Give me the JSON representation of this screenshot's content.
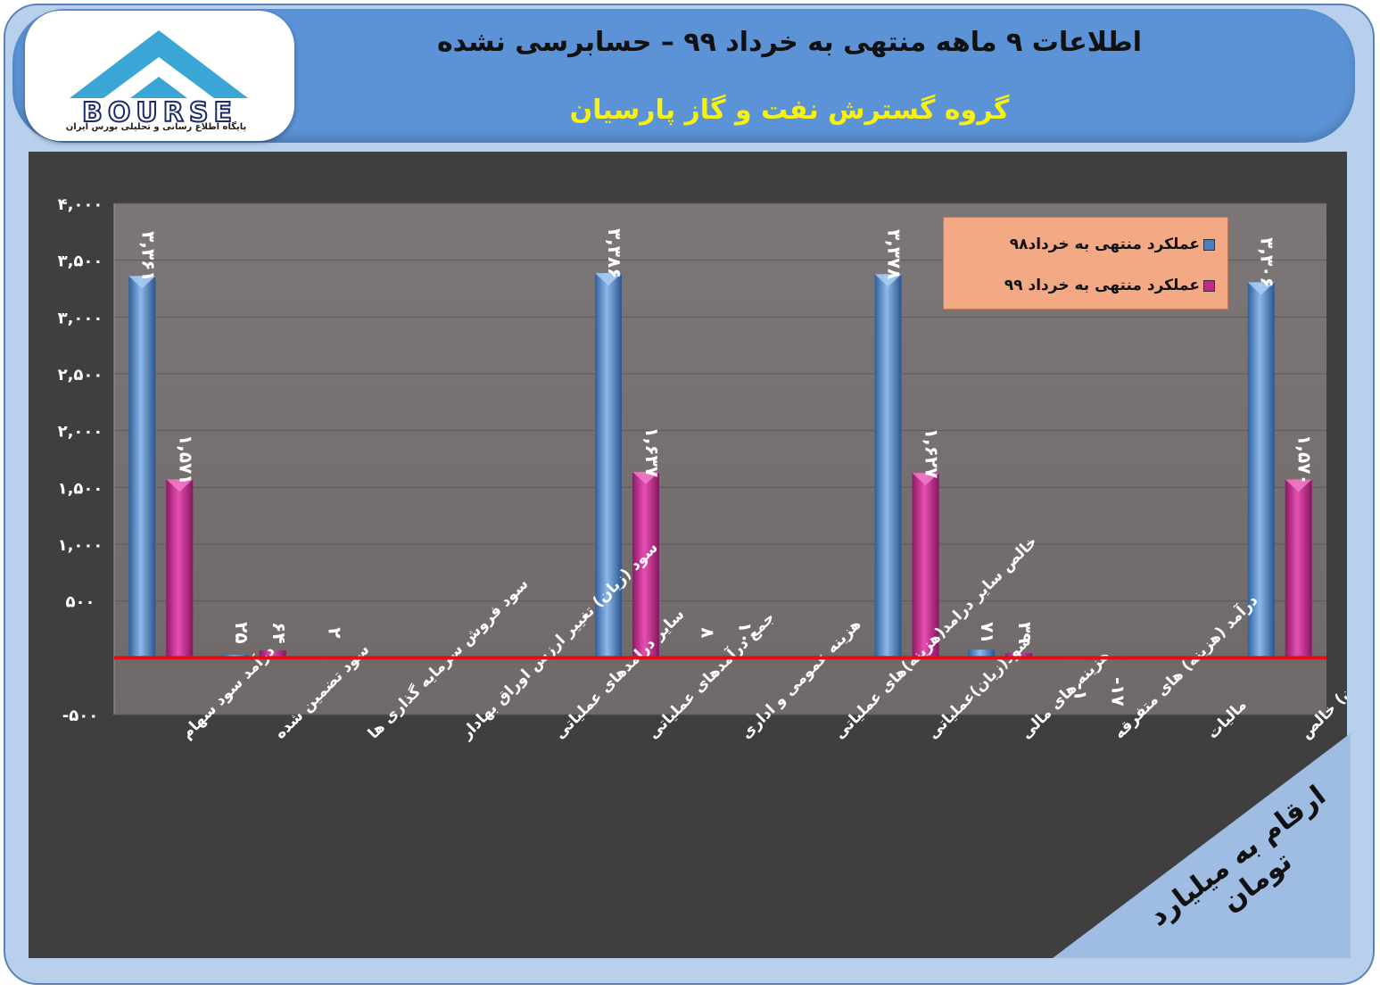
{
  "header": {
    "title": "اطلاعات ۹ ماهه منتهی به خرداد ۹۹ – حسابرسی نشده",
    "subtitle": "گروه گسترش نفت و گاز پارسیان"
  },
  "logo": {
    "text": "BOURSE",
    "tagline": "پایگاه اطلاع رسانی و تحلیلی بورس ایران"
  },
  "units_note": "ارقام به میلیارد تومان",
  "colors": {
    "series98": "#4a7fc1",
    "series99": "#c42a8e",
    "zero_line": "#e01010",
    "plot_bg": "#7a7474"
  },
  "chart_data": {
    "type": "bar",
    "title": "",
    "xlabel": "",
    "ylabel": "",
    "ylim": [
      -500,
      4000
    ],
    "yticks": [
      4000,
      3500,
      3000,
      2500,
      2000,
      1500,
      1000,
      500,
      0,
      -500
    ],
    "ytick_labels": [
      "۴,۰۰۰",
      "۳,۵۰۰",
      "۳,۰۰۰",
      "۲,۵۰۰",
      "۲,۰۰۰",
      "۱,۵۰۰",
      "۱,۰۰۰",
      "۵۰۰",
      "",
      "-۵۰۰"
    ],
    "grid": true,
    "legend_position": "top-right",
    "categories": [
      "درآمد سود سهام",
      "سود تضمین شده",
      "سود فروش سرمایه گذاری ها",
      "سود (زیان) تغییر ارزش اوراق بهادار",
      "سایر درامدهای عملیاتی",
      "جمع درآمدهای عملیاتی",
      "هزینه عمومی و اداری",
      "خالص سایر درامد(هزینه)های عملیاتی",
      "سود(زیان)عملیاتی",
      "هزینه های مالی",
      "درآمد (هزینه) های متفرقه",
      "مالیات",
      "سود(زیان) خالص"
    ],
    "series": [
      {
        "name": "عملکرد منتهی به خرداد۹۸",
        "values": [
          3361,
          25,
          2,
          null,
          null,
          3386,
          8,
          null,
          3378,
          71,
          -1,
          null,
          3306
        ],
        "labels": [
          "۳,۳۶۱",
          "۲۵",
          "۲",
          "",
          "",
          "۳,۳۸۶",
          "۸",
          "",
          "۳,۳۷۸",
          "۷۱",
          "-۱",
          "",
          "۳,۳۰۶"
        ]
      },
      {
        "name": "عملکرد منتهی به خرداد ۹۹",
        "values": [
          1571,
          64,
          null,
          null,
          null,
          1637,
          10,
          null,
          1627,
          39,
          -17,
          null,
          1570
        ],
        "labels": [
          "۱,۵۷۱",
          "۶۴",
          "",
          "",
          "",
          "۱,۶۳۷",
          "۱۰",
          "",
          "۱,۶۲۷",
          "۳۹",
          "-۱۷",
          "",
          "۱,۵۷۰"
        ]
      }
    ]
  }
}
